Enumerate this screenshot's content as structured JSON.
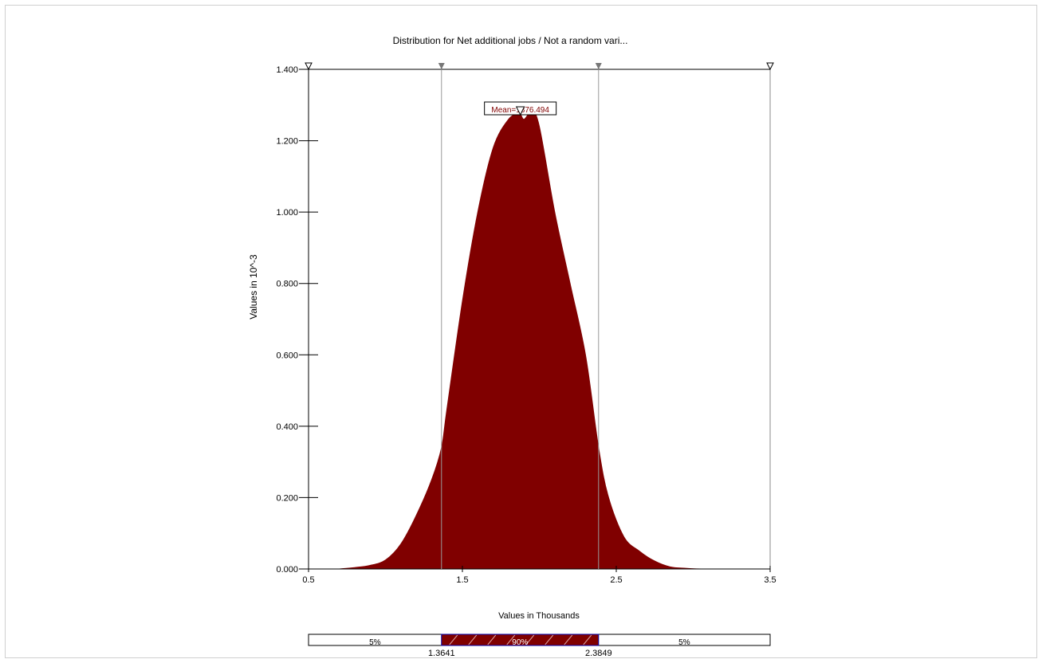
{
  "chart_data": {
    "type": "area",
    "title": "Distribution for Net additional jobs / Not a random vari...",
    "xlabel": "Values in Thousands",
    "ylabel": "Values in 10^-3",
    "xlim": [
      0.5,
      3.5
    ],
    "ylim": [
      0,
      1.4
    ],
    "x_ticks": [
      "0.5",
      "1.5",
      "2.5",
      "3.5"
    ],
    "y_ticks": [
      "0.000",
      "0.200",
      "0.400",
      "0.600",
      "0.800",
      "1.000",
      "1.200",
      "1.400"
    ],
    "mean_label": "Mean=1876.494",
    "fill_color": "#800000",
    "series": [
      {
        "x": [
          0.7,
          0.8,
          0.9,
          1.0,
          1.1,
          1.2,
          1.3,
          1.364,
          1.4,
          1.5,
          1.6,
          1.7,
          1.8,
          1.87,
          1.9,
          1.95,
          2.0,
          2.1,
          2.2,
          2.3,
          2.385,
          2.45,
          2.55,
          2.65,
          2.75,
          2.85,
          2.95,
          3.05
        ],
        "y": [
          0.0,
          0.004,
          0.01,
          0.025,
          0.07,
          0.15,
          0.25,
          0.34,
          0.45,
          0.75,
          1.0,
          1.18,
          1.26,
          1.275,
          1.26,
          1.28,
          1.24,
          1.0,
          0.8,
          0.6,
          0.34,
          0.2,
          0.09,
          0.05,
          0.022,
          0.006,
          0.002,
          0.0
        ]
      }
    ],
    "percentile_markers": [
      1.3641,
      2.3849
    ],
    "probability_bar": {
      "left_label": "5%",
      "middle_label": "90%",
      "right_label": "5%",
      "left_value": "1.3641",
      "right_value": "2.3849"
    },
    "grid": false,
    "legend": "none"
  }
}
